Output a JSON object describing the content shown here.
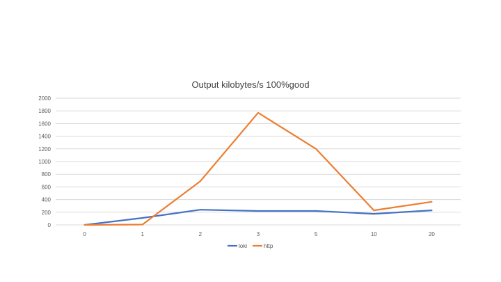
{
  "chart_data": {
    "type": "line",
    "title": "Output kilobytes/s 100%good",
    "categories": [
      "0",
      "1",
      "2",
      "3",
      "5",
      "10",
      "20"
    ],
    "ylim": [
      0,
      2000
    ],
    "yticks": [
      "0",
      "200",
      "400",
      "600",
      "800",
      "1000",
      "1200",
      "1400",
      "1600",
      "1800",
      "2000"
    ],
    "grid": true,
    "legend_position": "bottom",
    "series": [
      {
        "name": "loki",
        "color": "#4472c4",
        "values": [
          0,
          110,
          240,
          220,
          220,
          175,
          230
        ]
      },
      {
        "name": "http",
        "color": "#ed7d31",
        "values": [
          0,
          5,
          690,
          1770,
          1200,
          230,
          365
        ]
      }
    ]
  }
}
